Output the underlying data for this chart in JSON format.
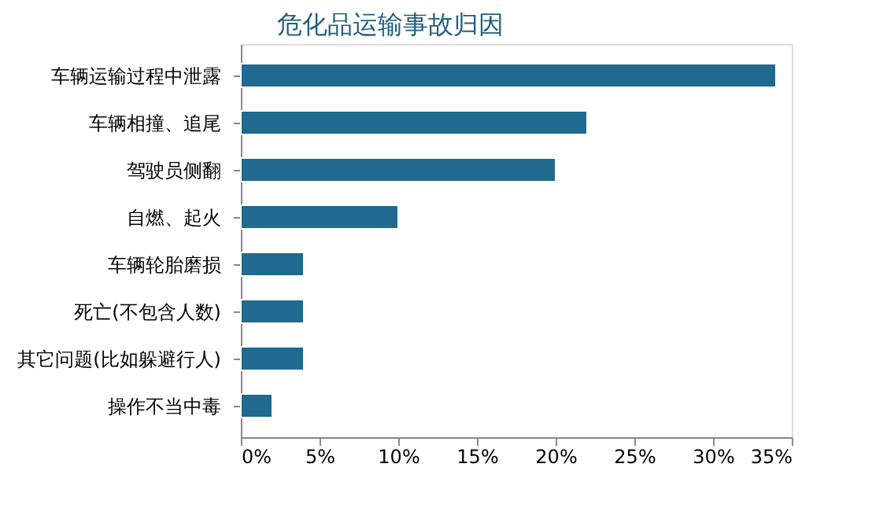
{
  "chart_data": {
    "type": "bar",
    "orientation": "horizontal",
    "title": "危化品运输事故归因",
    "categories": [
      "车辆运输过程中泄露",
      "车辆相撞、追尾",
      "驾驶员侧翻",
      "自燃、起火",
      "车辆轮胎磨损",
      "死亡(不包含人数)",
      "其它问题(比如躲避行人)",
      "操作不当中毒"
    ],
    "values": [
      34,
      22,
      20,
      10,
      4,
      4,
      4,
      2
    ],
    "color": "#1f6a8e",
    "xlim": [
      0,
      35
    ],
    "xticks": [
      {
        "value": 0,
        "label": "0%"
      },
      {
        "value": 5,
        "label": "5%"
      },
      {
        "value": 10,
        "label": "10%"
      },
      {
        "value": 15,
        "label": "15%"
      },
      {
        "value": 20,
        "label": "20%"
      },
      {
        "value": 25,
        "label": "25%"
      },
      {
        "value": 30,
        "label": "30%"
      },
      {
        "value": 35,
        "label": "35%"
      }
    ],
    "grid": false
  }
}
